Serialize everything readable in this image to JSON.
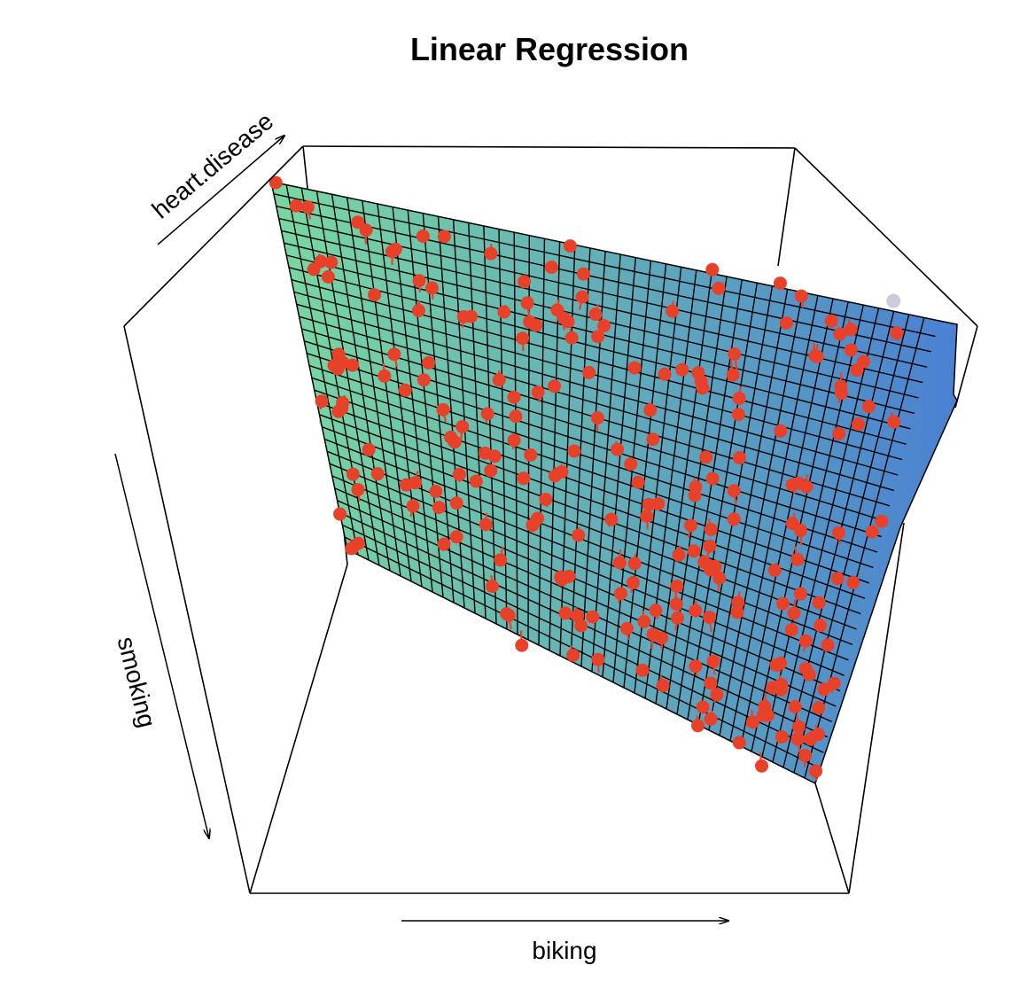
{
  "chart_data": {
    "type": "scatter",
    "title": "Linear Regression",
    "xlabel": "biking",
    "ylabel": "smoking",
    "zlabel": "heart.disease",
    "projection": "3d",
    "surface": "fitted regression plane",
    "grid": true,
    "colors": {
      "points": "#e8412a",
      "surface_low": "#79d6a2",
      "surface_high": "#4a80d2",
      "mesh": "#000000",
      "box": "#000000"
    }
  }
}
